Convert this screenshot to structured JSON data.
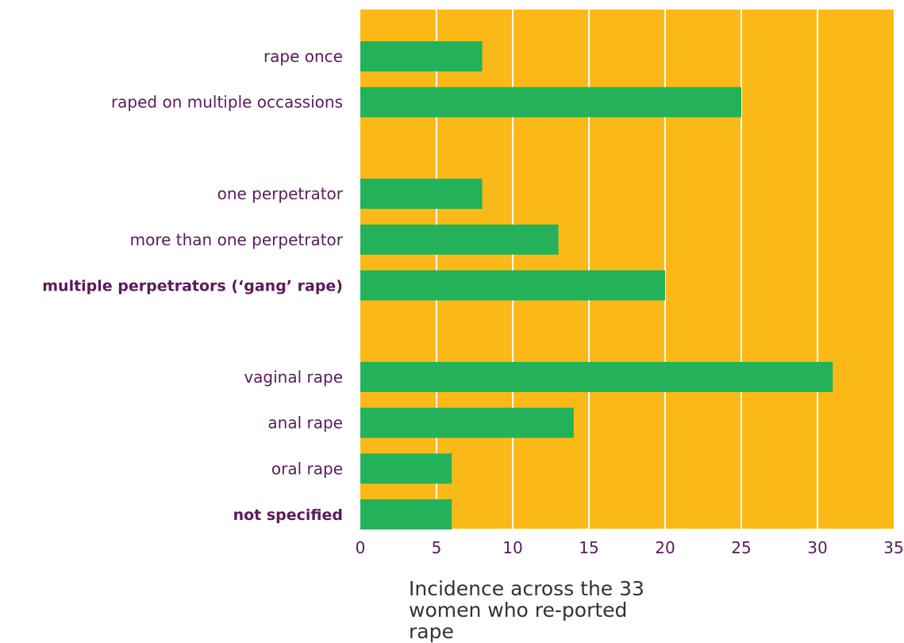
{
  "chart_data": {
    "type": "bar",
    "orientation": "horizontal",
    "categories": [
      "rape once",
      "raped on multiple occassions",
      "one perpetrator",
      "more than one perpetrator",
      "multiple perpetrators (‘gang’ rape)",
      "vaginal rape",
      "anal rape",
      "oral rape",
      "not specified"
    ],
    "bold_categories": [
      "multiple perpetrators (‘gang’ rape)",
      "not specified"
    ],
    "groups": [
      [
        0,
        1
      ],
      [
        2,
        3,
        4
      ],
      [
        5,
        6,
        7,
        8
      ]
    ],
    "values": [
      8,
      25,
      8,
      13,
      20,
      31,
      14,
      6,
      6
    ],
    "xlabel": "Incidence across the 33 women who re-ported rape",
    "xlim": [
      0,
      35
    ],
    "xticks": [
      0,
      5,
      10,
      15,
      20,
      25,
      30,
      35
    ],
    "grid": true,
    "colors": {
      "background": "#fbb918",
      "bar": "#23b25a",
      "grid": "#ffffff",
      "text": "#5b1a5e"
    }
  }
}
